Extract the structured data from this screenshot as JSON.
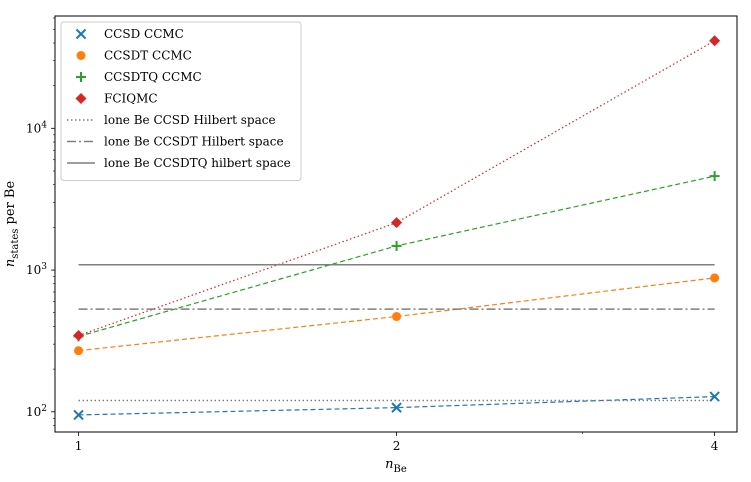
{
  "chart_data": {
    "type": "line",
    "xlabel_base": "n",
    "xlabel_sub": "Be",
    "ylabel_base": "n",
    "ylabel_sub": "states",
    "ylabel_tail": " per Be",
    "x_scale": "log2",
    "y_scale": "log10",
    "xlim": [
      0.95,
      4.2
    ],
    "ylim": [
      72,
      62000
    ],
    "x_ticks": [
      {
        "value": 1,
        "label": "1"
      },
      {
        "value": 2,
        "label": "2"
      },
      {
        "value": 4,
        "label": "4"
      }
    ],
    "y_ticks": [
      {
        "value": 100,
        "base": "10",
        "exp": "2"
      },
      {
        "value": 1000,
        "base": "10",
        "exp": "3"
      },
      {
        "value": 10000,
        "base": "10",
        "exp": "4"
      }
    ],
    "grid": false,
    "legend_position": "top-left",
    "series": [
      {
        "name": "CCSD CCMC",
        "kind": "marker",
        "marker": "x",
        "color": "#1f77b4",
        "dash": "dashed",
        "x": [
          1,
          2,
          4
        ],
        "y": [
          95,
          107,
          128
        ]
      },
      {
        "name": "CCSDT CCMC",
        "kind": "marker",
        "marker": "circle",
        "color": "#ff7f0e",
        "dash": "dashed",
        "x": [
          1,
          2,
          4
        ],
        "y": [
          270,
          470,
          880
        ]
      },
      {
        "name": "CCSDTQ CCMC",
        "kind": "marker",
        "marker": "plus",
        "color": "#2ca02c",
        "dash": "dashed",
        "x": [
          1,
          2,
          4
        ],
        "y": [
          340,
          1480,
          4600
        ]
      },
      {
        "name": "FCIQMC",
        "kind": "marker",
        "marker": "diamond",
        "color": "#d62728",
        "dash": "dotted",
        "x": [
          1,
          2,
          4
        ],
        "y": [
          345,
          2160,
          41500
        ]
      },
      {
        "name": "lone Be CCSD Hilbert space",
        "kind": "hline",
        "color": "#7f7f7f",
        "dash": "dotted",
        "x": [
          1,
          4
        ],
        "y": [
          120,
          120
        ]
      },
      {
        "name": "lone Be CCSDT Hilbert space",
        "kind": "hline",
        "color": "#7f7f7f",
        "dash": "dashdot",
        "x": [
          1,
          4
        ],
        "y": [
          530,
          530
        ]
      },
      {
        "name": "lone Be CCSDTQ hilbert space",
        "kind": "hline",
        "color": "#7f7f7f",
        "dash": "solid",
        "x": [
          1,
          4
        ],
        "y": [
          1090,
          1090
        ]
      }
    ]
  }
}
